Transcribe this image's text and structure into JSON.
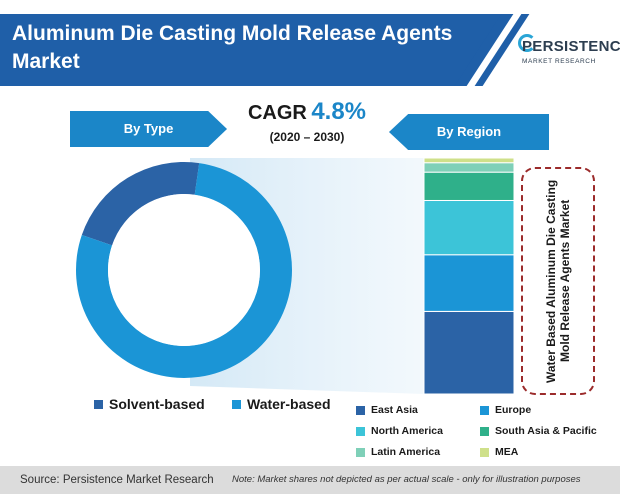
{
  "header": {
    "title": "Aluminum Die Casting Mold Release Agents Market",
    "logo_main": "PERSISTENCE",
    "logo_sub": "MARKET RESEARCH"
  },
  "cagr": {
    "label": "CAGR",
    "value": "4.8%",
    "period": "(2020 – 2030)"
  },
  "sections": {
    "by_type": "By Type",
    "by_region": "By Region"
  },
  "callout": "Water Based Aluminum Die Casting Mold Release Agents Market",
  "chart_data": [
    {
      "type": "pie",
      "variant": "donut",
      "categories": [
        "Solvent-based",
        "Water-based"
      ],
      "values": [
        22,
        78
      ],
      "colors": [
        "#2b63a6",
        "#1b95d6"
      ]
    },
    {
      "type": "bar",
      "variant": "stacked-100",
      "categories": [
        "East Asia",
        "Europe",
        "North America",
        "South Asia & Pacific",
        "Latin America",
        "MEA"
      ],
      "values": [
        35,
        24,
        23,
        12,
        4,
        2
      ],
      "colors": [
        "#2b63a6",
        "#1b95d6",
        "#3cc4d8",
        "#2fb08a",
        "#7fd0b8",
        "#cfe08a"
      ]
    }
  ],
  "footer": {
    "source": "Source: Persistence Market Research",
    "note": "Note: Market shares not depicted as per actual scale - only for illustration purposes"
  }
}
